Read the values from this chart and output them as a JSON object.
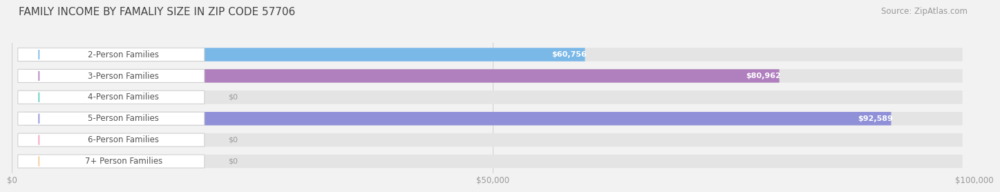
{
  "title": "FAMILY INCOME BY FAMALIY SIZE IN ZIP CODE 57706",
  "source": "Source: ZipAtlas.com",
  "categories": [
    "2-Person Families",
    "3-Person Families",
    "4-Person Families",
    "5-Person Families",
    "6-Person Families",
    "7+ Person Families"
  ],
  "values": [
    60756,
    80962,
    0,
    92589,
    0,
    0
  ],
  "bar_colors": [
    "#7ab8e8",
    "#b07fbe",
    "#5ecfbe",
    "#8f90d8",
    "#f4a0b8",
    "#f5c89a"
  ],
  "value_labels": [
    "$60,756",
    "$80,962",
    "$0",
    "$92,589",
    "$0",
    "$0"
  ],
  "xlim_max": 100000,
  "xtick_labels": [
    "$0",
    "$50,000",
    "$100,000"
  ],
  "xtick_values": [
    0,
    50000,
    100000
  ],
  "background_color": "#f2f2f2",
  "bar_bg_color": "#e4e4e4",
  "title_fontsize": 11,
  "source_fontsize": 8.5,
  "label_fontsize": 8.5,
  "value_fontsize": 8
}
